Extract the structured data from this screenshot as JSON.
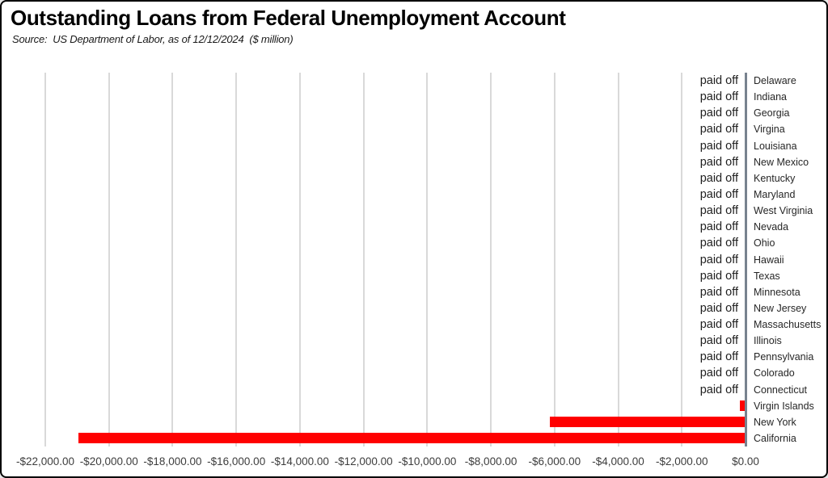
{
  "title": "Outstanding Loans from Federal Unemployment Account",
  "subtitle": "Source:  US Department of Labor, as of 12/12/2024  ($ million)",
  "chart_data": {
    "type": "bar",
    "orientation": "horizontal",
    "title": "Outstanding Loans from Federal Unemployment Account",
    "source": "US Department of Labor, as of 12/12/2024",
    "units": "$ million",
    "categories": [
      "Delaware",
      "Indiana",
      "Georgia",
      "Virgina",
      "Louisiana",
      "New Mexico",
      "Kentucky",
      "Maryland",
      "West Virginia",
      "Nevada",
      "Ohio",
      "Hawaii",
      "Texas",
      "Minnesota",
      "New Jersey",
      "Massachusetts",
      "Illinois",
      "Pennsylvania",
      "Colorado",
      "Connecticut",
      "Virgin Islands",
      "New York",
      "California"
    ],
    "values": [
      0,
      0,
      0,
      0,
      0,
      0,
      0,
      0,
      0,
      0,
      0,
      0,
      0,
      0,
      0,
      0,
      0,
      0,
      0,
      0,
      -180,
      -6150,
      -20950
    ],
    "bar_labels": [
      "paid off",
      "paid off",
      "paid off",
      "paid off",
      "paid off",
      "paid off",
      "paid off",
      "paid off",
      "paid off",
      "paid off",
      "paid off",
      "paid off",
      "paid off",
      "paid off",
      "paid off",
      "paid off",
      "paid off",
      "paid off",
      "paid off",
      "paid off",
      "",
      "",
      ""
    ],
    "x_tick_labels": [
      "-$22,000.00",
      "-$20,000.00",
      "-$18,000.00",
      "-$16,000.00",
      "-$14,000.00",
      "-$12,000.00",
      "-$10,000.00",
      "-$8,000.00",
      "-$6,000.00",
      "-$4,000.00",
      "-$2,000.00",
      "$0.00"
    ],
    "x_tick_values": [
      -22000,
      -20000,
      -18000,
      -16000,
      -14000,
      -12000,
      -10000,
      -8000,
      -6000,
      -4000,
      -2000,
      0
    ],
    "xlim": [
      -22000,
      0
    ],
    "grid": true,
    "legend": "none",
    "colors": {
      "bar": "#ff0000",
      "gridline": "#d9d9d9",
      "axis_line": "#78828f",
      "title": "#000000",
      "tick_text": "#3d3d3d",
      "category_text": "#262626",
      "paid_off_text": "#1f1f1f"
    }
  }
}
